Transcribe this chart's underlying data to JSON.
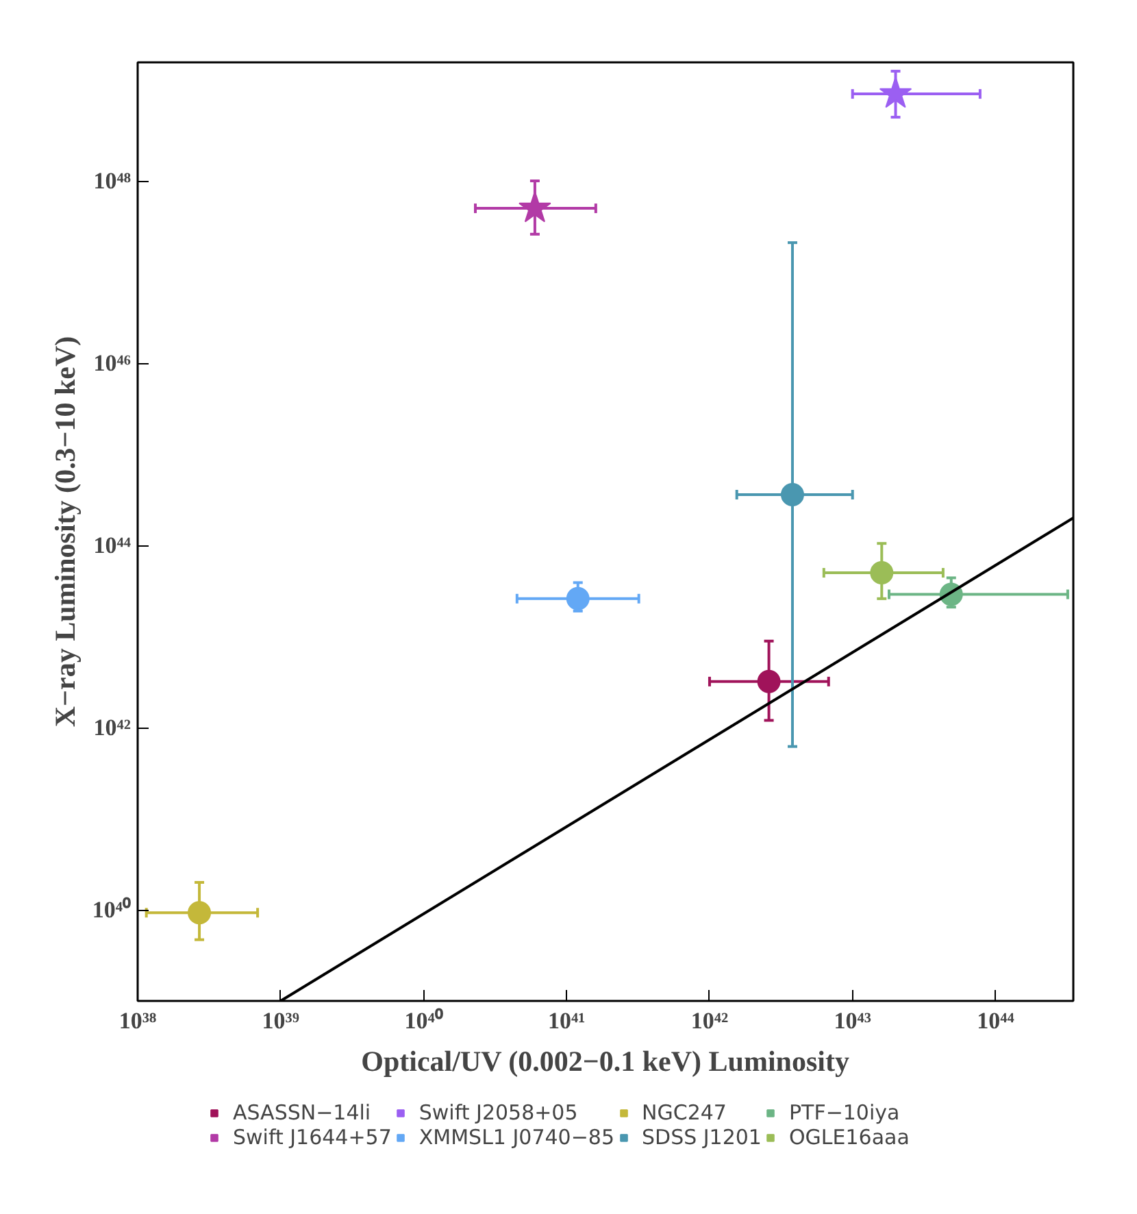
{
  "chart_data": {
    "type": "scatter",
    "xlabel": "Optical/UV (0.002−0.1 keV) Luminosity",
    "ylabel": "X−ray Luminosity (0.3−10 keV)",
    "log": "xy",
    "grid": false,
    "legend": "bottom",
    "xlim": [
      1e+38,
      3.5e+44
    ],
    "ylim": [
      1e+39,
      2e+49
    ],
    "xticks": [
      {
        "value": 1e+38,
        "label": "10³⁸"
      },
      {
        "value": 1e+39,
        "label": "10³⁹"
      },
      {
        "value": 1e+40,
        "label": "10⁴⁰"
      },
      {
        "value": 1e+41,
        "label": "10⁴¹"
      },
      {
        "value": 1e+42,
        "label": "10⁴²"
      },
      {
        "value": 1e+43,
        "label": "10⁴³"
      },
      {
        "value": 1e+44,
        "label": "10⁴⁴"
      }
    ],
    "yticks": [
      {
        "value": 1e+40,
        "label": "10⁴⁰"
      },
      {
        "value": 1e+42,
        "label": "10⁴²"
      },
      {
        "value": 1e+44,
        "label": "10⁴⁴"
      },
      {
        "value": 1e+46,
        "label": "10⁴⁶"
      },
      {
        "value": 1e+48,
        "label": "10⁴⁸"
      }
    ],
    "series": [
      {
        "name": "ASASSN−14li",
        "color": "#a0135a",
        "marker": "circle",
        "x": [
          2.6e+42
        ],
        "values": [
          3.2e+42
        ],
        "xerrors": [
          [
            1e+42,
            6.8e+42
          ]
        ],
        "errors": [
          [
            1.2e+42,
            8.9e+42
          ]
        ]
      },
      {
        "name": "Swift J1644+57",
        "color": "#b23aa6",
        "marker": "star",
        "x": [
          6e+40
        ],
        "values": [
          5e+47
        ],
        "xerrors": [
          [
            2.3e+40,
            1.6e+41
          ]
        ],
        "errors": [
          [
            2.6e+47,
            1e+48
          ]
        ]
      },
      {
        "name": "Swift J2058+05",
        "color": "#9b5ff2",
        "marker": "star",
        "x": [
          2e+43
        ],
        "values": [
          9e+48
        ],
        "xerrors": [
          [
            1e+43,
            7.8e+43
          ]
        ],
        "errors": [
          [
            5e+48,
            1.6e+49
          ]
        ]
      },
      {
        "name": "XMMSL1 J0740−85",
        "color": "#63a8f5",
        "marker": "circle",
        "x": [
          1.2e+41
        ],
        "values": [
          2.6e+43
        ],
        "xerrors": [
          [
            4.5e+40,
            3.2e+41
          ]
        ],
        "errors": [
          [
            1.9e+43,
            3.9e+43
          ]
        ]
      },
      {
        "name": "NGC247",
        "color": "#c4b83a",
        "marker": "circle",
        "x": [
          2.7e+38
        ],
        "values": [
          9.3e+39
        ],
        "xerrors": [
          [
            1.15e+38,
            6.9e+38
          ]
        ],
        "errors": [
          [
            4.7e+39,
            2e+40
          ]
        ]
      },
      {
        "name": "SDSS J1201",
        "color": "#4a97b0",
        "marker": "circle",
        "x": [
          3.8e+42
        ],
        "values": [
          3.6e+44
        ],
        "xerrors": [
          [
            1.55e+42,
            1e+43
          ]
        ],
        "errors": [
          [
            6.2e+41,
            2.1e+47
          ]
        ]
      },
      {
        "name": "PTF−10iya",
        "color": "#6cb585",
        "marker": "circle",
        "x": [
          4.9e+43
        ],
        "values": [
          2.9e+43
        ],
        "xerrors": [
          [
            1.8e+43,
            3.2e+44
          ]
        ],
        "errors": [
          [
            2.1e+43,
            4.4e+43
          ]
        ]
      },
      {
        "name": "OGLE16aaa",
        "color": "#9bbd57",
        "marker": "circle",
        "x": [
          1.6e+43
        ],
        "values": [
          5e+43
        ],
        "xerrors": [
          [
            6.3e+42,
            4.3e+43
          ]
        ],
        "errors": [
          [
            2.6e+43,
            1.05e+44
          ]
        ]
      },
      {
        "type": "line",
        "color": "#000000",
        "marker": "none",
        "x": [
          1e+39,
          3.5e+44
        ],
        "values": [
          1e+39,
          2e+44
        ]
      }
    ]
  }
}
